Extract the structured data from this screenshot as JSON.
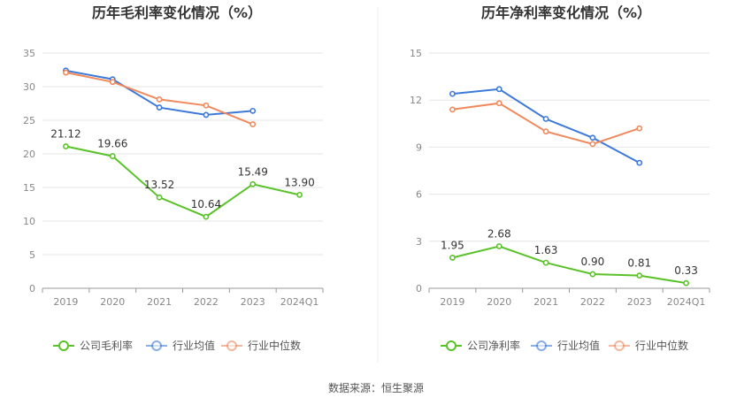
{
  "chart_data": [
    {
      "type": "line",
      "title": "历年毛利率变化情况（%）",
      "categories": [
        "2019",
        "2020",
        "2021",
        "2022",
        "2023",
        "2024Q1"
      ],
      "ylim": [
        0,
        35
      ],
      "yticks": [
        0,
        5,
        10,
        15,
        20,
        25,
        30,
        35
      ],
      "grid": true,
      "legend_position": "bottom",
      "series": [
        {
          "name": "公司毛利率",
          "color": "#5ac229",
          "values": [
            21.12,
            19.66,
            13.52,
            10.64,
            15.49,
            13.9
          ],
          "labels": [
            "21.12",
            "19.66",
            "13.52",
            "10.64",
            "15.49",
            "13.90"
          ]
        },
        {
          "name": "行业均值",
          "color": "#3d79d8",
          "values": [
            32.4,
            31.1,
            26.9,
            25.8,
            26.4,
            null
          ]
        },
        {
          "name": "行业中位数",
          "color": "#f08a5d",
          "values": [
            32.1,
            30.7,
            28.1,
            27.2,
            24.4,
            null
          ]
        }
      ]
    },
    {
      "type": "line",
      "title": "历年净利率变化情况（%）",
      "categories": [
        "2019",
        "2020",
        "2021",
        "2022",
        "2023",
        "2024Q1"
      ],
      "ylim": [
        0,
        15
      ],
      "yticks": [
        0,
        3,
        6,
        9,
        12,
        15
      ],
      "grid": true,
      "legend_position": "bottom",
      "series": [
        {
          "name": "公司净利率",
          "color": "#5ac229",
          "values": [
            1.95,
            2.68,
            1.63,
            0.9,
            0.81,
            0.33
          ],
          "labels": [
            "1.95",
            "2.68",
            "1.63",
            "0.90",
            "0.81",
            "0.33"
          ]
        },
        {
          "name": "行业均值",
          "color": "#3d79d8",
          "values": [
            12.4,
            12.7,
            10.8,
            9.6,
            8.0,
            null
          ]
        },
        {
          "name": "行业中位数",
          "color": "#f08a5d",
          "values": [
            11.4,
            11.8,
            10.0,
            9.2,
            10.2,
            null
          ]
        }
      ]
    }
  ],
  "footer": {
    "source": "数据来源：恒生聚源"
  }
}
